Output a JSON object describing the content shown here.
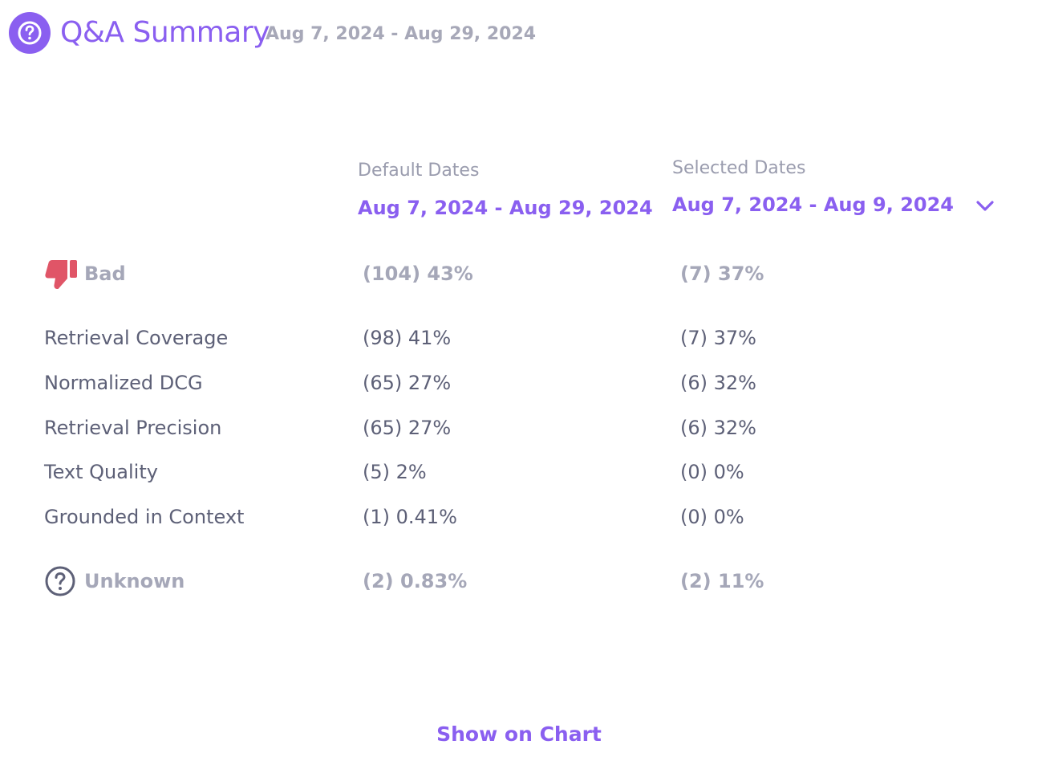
{
  "header": {
    "title": "Q&A Summary",
    "date_range": "Aug 7, 2024 - Aug 29, 2024",
    "icon": "question-circle-icon"
  },
  "columns": {
    "default": {
      "caption": "Default Dates",
      "range": "Aug 7, 2024 - Aug 29, 2024"
    },
    "selected": {
      "caption": "Selected Dates",
      "range": "Aug 7, 2024 - Aug 9, 2024"
    }
  },
  "bad": {
    "label": "Bad",
    "default": "(104) 43%",
    "selected": "(7) 37%",
    "icon": "thumbs-down-icon"
  },
  "metrics": [
    {
      "label": "Retrieval Coverage",
      "default": "(98) 41%",
      "selected": "(7) 37%"
    },
    {
      "label": "Normalized DCG",
      "default": "(65) 27%",
      "selected": "(6) 32%"
    },
    {
      "label": "Retrieval Precision",
      "default": "(65) 27%",
      "selected": "(6) 32%"
    },
    {
      "label": "Text Quality",
      "default": "(5) 2%",
      "selected": "(0) 0%"
    },
    {
      "label": "Grounded in Context",
      "default": "(1) 0.41%",
      "selected": "(0) 0%"
    }
  ],
  "unknown": {
    "label": "Unknown",
    "default": "(2) 0.83%",
    "selected": "(2) 11%",
    "icon": "question-circle-icon"
  },
  "actions": {
    "show_on_chart": "Show on Chart"
  },
  "colors": {
    "accent": "#8a5ff0",
    "bad": "#e05567",
    "text": "#5d6077",
    "muted": "#a5a7b8"
  }
}
